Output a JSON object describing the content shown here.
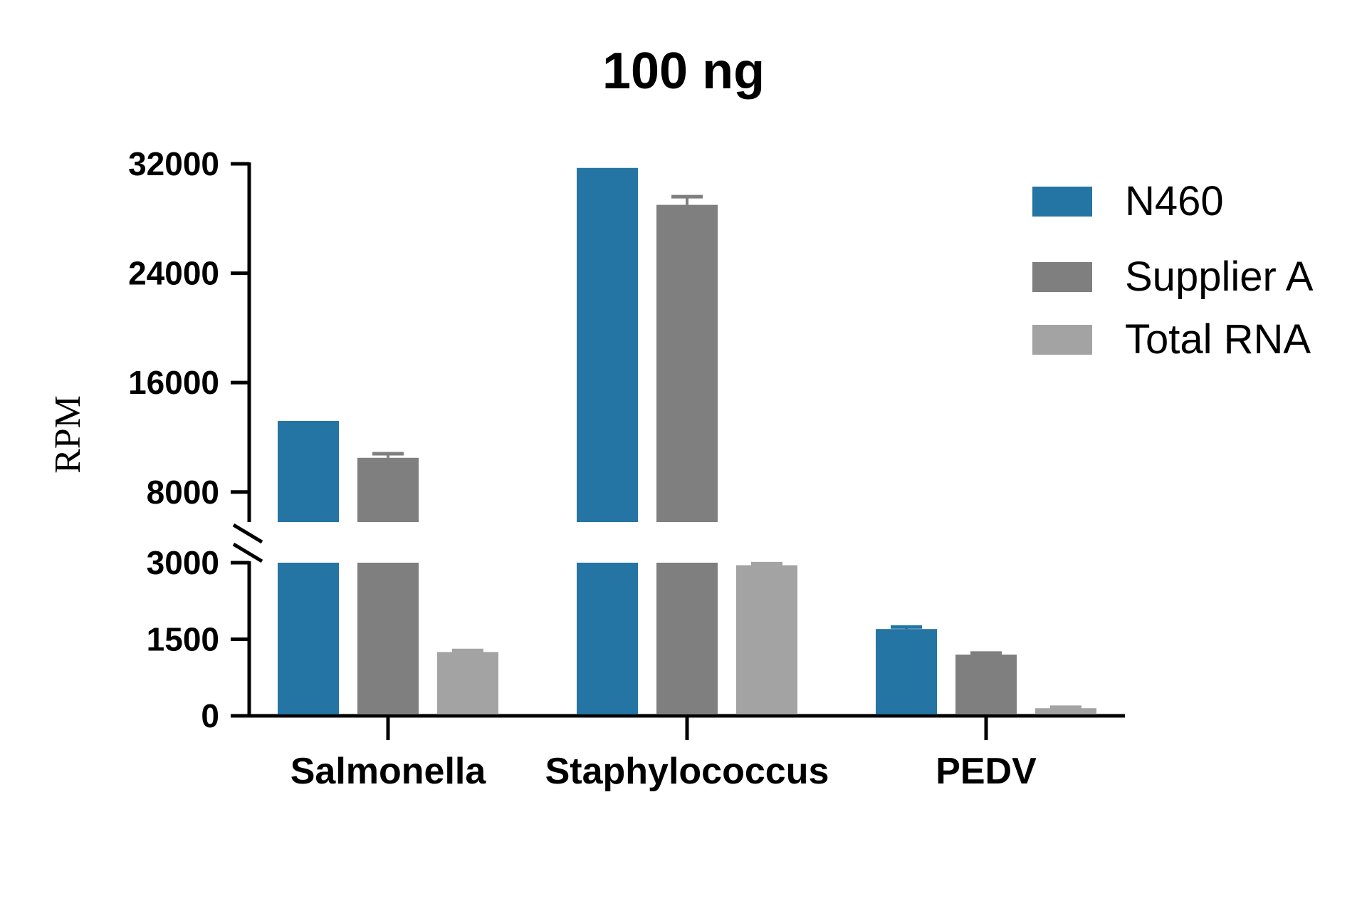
{
  "chart_data": {
    "type": "bar",
    "title": "100 ng",
    "ylabel": "RPM",
    "xlabel": "",
    "categories": [
      "Salmonella",
      "Staphylococcus",
      "PEDV"
    ],
    "series": [
      {
        "name": "N460",
        "color": "#2474a4",
        "values": [
          13200,
          31700,
          1700
        ],
        "errors": [
          0,
          0,
          40
        ]
      },
      {
        "name": "Supplier A",
        "color": "#7f7f7f",
        "values": [
          10500,
          29000,
          1200
        ],
        "errors": [
          300,
          600,
          30
        ]
      },
      {
        "name": "Total RNA",
        "color": "#a3a3a3",
        "values": [
          1250,
          2950,
          150
        ],
        "errors": [
          30,
          30,
          20
        ]
      }
    ],
    "y_axis": {
      "broken": true,
      "lower_segment": {
        "range": [
          0,
          3000
        ],
        "ticks": [
          0,
          1500,
          3000
        ]
      },
      "upper_segment": {
        "range": [
          5800,
          32000
        ],
        "ticks": [
          8000,
          16000,
          24000,
          32000
        ]
      },
      "tick_labels": [
        "0",
        "1500",
        "3000",
        "8000",
        "16000",
        "24000",
        "32000"
      ]
    },
    "legend_position": "top-right",
    "grid": false
  }
}
